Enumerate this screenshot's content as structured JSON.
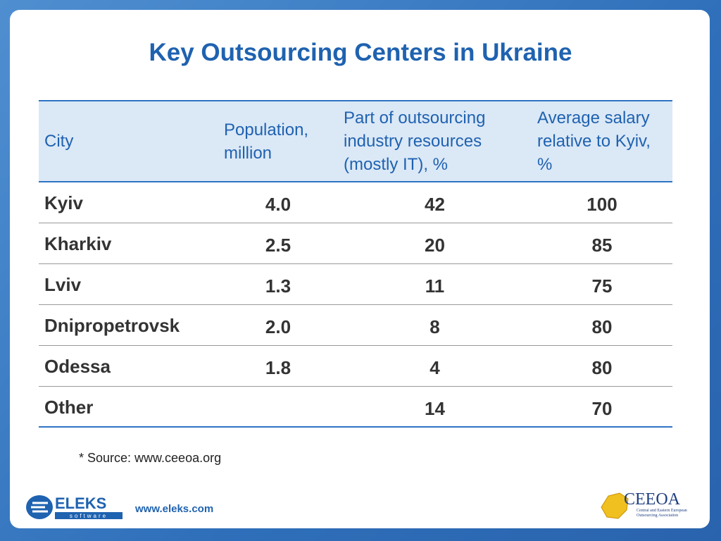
{
  "header": {
    "title": "Key Outsourcing Centers in Ukraine"
  },
  "table": {
    "columns": [
      "City",
      "Population, million",
      "Part of outsourcing industry resources (mostly IT), %",
      "Average salary relative to Kyiv, %"
    ],
    "rows": [
      [
        "Kyiv",
        "4.0",
        "42",
        "100"
      ],
      [
        "Kharkiv",
        "2.5",
        "20",
        "85"
      ],
      [
        "Lviv",
        "1.3",
        "11",
        "75"
      ],
      [
        "Dnipropetrovsk",
        "2.0",
        "8",
        "80"
      ],
      [
        "Odessa",
        "1.8",
        "4",
        "80"
      ],
      [
        "Other",
        null,
        "14",
        "70"
      ]
    ]
  },
  "footnote": "* Source: www.ceeoa.org",
  "footer": {
    "logo_left": "ELEKS",
    "logo_left_sub": "software",
    "url": "www.eleks.com",
    "logo_right": "CEEOA",
    "logo_right_sub": "Central and Eastern European Outsourcing Association"
  }
}
